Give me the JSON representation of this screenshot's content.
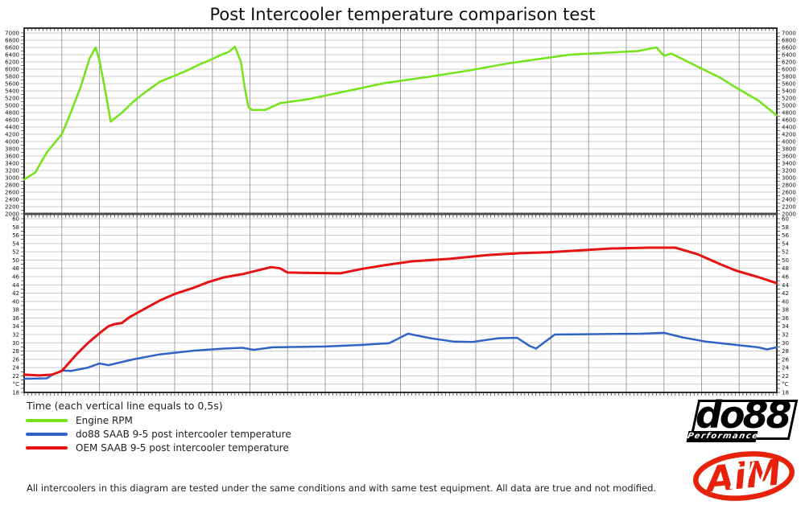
{
  "title": "Post Intercooler temperature comparison test",
  "time_note": "Time (each vertical line equals to 0,5s)",
  "footer": "All intercoolers in this diagram are tested under the same conditions and with same test equipment. All data are true and not modified.",
  "colors": {
    "rpm_green": "#74E318",
    "do88_blue": "#2F63C5",
    "oem_red": "#E51313",
    "grid_light": "#cccccc",
    "grid_vertical": "#a2a2a2",
    "border": "#2e2e2e",
    "divider": "#4d4d4d"
  },
  "legend": [
    {
      "label": "Engine RPM",
      "color": "#74E318"
    },
    {
      "label": "do88 SAAB 9-5 post intercooler temperature",
      "color": "#2F63C5"
    },
    {
      "label": "OEM SAAB 9-5 post intercooler temperature",
      "color": "#E51313"
    }
  ],
  "logos": {
    "do88_text": "do88",
    "do88_sub": "Performance",
    "aim_text": "AiM"
  },
  "chart_data": {
    "type": "line",
    "title": "Post Intercooler temperature comparison test",
    "x_axis": {
      "unit": "s",
      "range": [
        0,
        10
      ],
      "major_gridline_interval_s": 0.5,
      "minor_tick_interval_s": 0.05,
      "note": "each vertical line equals to 0,5s"
    },
    "panels": [
      {
        "name": "engine-rpm",
        "ylim": [
          2000,
          7000
        ],
        "tick_step": 200,
        "y_ticks": [
          7000,
          6800,
          6600,
          6400,
          6200,
          6000,
          5800,
          5600,
          5400,
          5200,
          5000,
          4800,
          4600,
          4400,
          4200,
          4000,
          3800,
          3600,
          3400,
          3200,
          3000,
          2800,
          2600,
          2400,
          2200,
          2000
        ],
        "grid": true,
        "series": [
          {
            "name": "Engine RPM",
            "color": "#74E318",
            "width": 2.5,
            "points": [
              [
                0,
                2950
              ],
              [
                0.15,
                3150
              ],
              [
                0.3,
                3700
              ],
              [
                0.5,
                4200
              ],
              [
                0.6,
                4700
              ],
              [
                0.75,
                5500
              ],
              [
                0.87,
                6300
              ],
              [
                0.95,
                6600
              ],
              [
                1.0,
                6250
              ],
              [
                1.07,
                5500
              ],
              [
                1.15,
                4550
              ],
              [
                1.3,
                4800
              ],
              [
                1.45,
                5100
              ],
              [
                1.6,
                5350
              ],
              [
                1.8,
                5650
              ],
              [
                2.0,
                5820
              ],
              [
                2.15,
                5950
              ],
              [
                2.35,
                6150
              ],
              [
                2.5,
                6280
              ],
              [
                2.62,
                6400
              ],
              [
                2.72,
                6480
              ],
              [
                2.8,
                6620
              ],
              [
                2.88,
                6200
              ],
              [
                2.93,
                5500
              ],
              [
                2.98,
                4950
              ],
              [
                3.03,
                4870
              ],
              [
                3.2,
                4870
              ],
              [
                3.4,
                5060
              ],
              [
                3.75,
                5160
              ],
              [
                4.3,
                5400
              ],
              [
                4.8,
                5620
              ],
              [
                5.35,
                5780
              ],
              [
                5.9,
                5960
              ],
              [
                6.4,
                6150
              ],
              [
                6.8,
                6270
              ],
              [
                7.25,
                6400
              ],
              [
                7.8,
                6460
              ],
              [
                8.15,
                6500
              ],
              [
                8.4,
                6600
              ],
              [
                8.5,
                6370
              ],
              [
                8.6,
                6430
              ],
              [
                8.9,
                6120
              ],
              [
                9.25,
                5760
              ],
              [
                9.45,
                5500
              ],
              [
                9.75,
                5140
              ],
              [
                10,
                4720
              ]
            ]
          }
        ]
      },
      {
        "name": "temperature",
        "unit": "°C",
        "unit_replaces_tick": 20,
        "ylim": [
          18,
          60
        ],
        "tick_step": 2,
        "y_ticks": [
          60,
          58,
          56,
          54,
          52,
          50,
          48,
          46,
          44,
          42,
          40,
          38,
          36,
          34,
          32,
          30,
          28,
          26,
          24,
          22,
          20,
          18
        ],
        "grid": true,
        "series": [
          {
            "name": "do88 SAAB 9-5 post intercooler temperature",
            "color": "#2F63C5",
            "width": 2.5,
            "points": [
              [
                0,
                21.3
              ],
              [
                0.3,
                21.4
              ],
              [
                0.37,
                22.2
              ],
              [
                0.5,
                23.3
              ],
              [
                0.62,
                23.2
              ],
              [
                0.85,
                24.0
              ],
              [
                1.0,
                25.0
              ],
              [
                1.12,
                24.6
              ],
              [
                1.45,
                26.0
              ],
              [
                1.8,
                27.2
              ],
              [
                2.25,
                28.1
              ],
              [
                2.65,
                28.6
              ],
              [
                2.9,
                28.8
              ],
              [
                3.05,
                28.3
              ],
              [
                3.3,
                28.9
              ],
              [
                4.0,
                29.1
              ],
              [
                4.5,
                29.5
              ],
              [
                4.85,
                29.9
              ],
              [
                5.1,
                32.2
              ],
              [
                5.4,
                31.1
              ],
              [
                5.7,
                30.3
              ],
              [
                5.95,
                30.2
              ],
              [
                6.3,
                31.1
              ],
              [
                6.55,
                31.2
              ],
              [
                6.72,
                29.2
              ],
              [
                6.8,
                28.6
              ],
              [
                7.05,
                32.0
              ],
              [
                7.6,
                32.1
              ],
              [
                8.2,
                32.2
              ],
              [
                8.5,
                32.4
              ],
              [
                8.75,
                31.3
              ],
              [
                9.05,
                30.3
              ],
              [
                9.25,
                29.9
              ],
              [
                9.5,
                29.4
              ],
              [
                9.75,
                28.9
              ],
              [
                9.87,
                28.4
              ],
              [
                10,
                28.9
              ]
            ]
          },
          {
            "name": "OEM SAAB 9-5 post intercooler temperature",
            "color": "#E51313",
            "width": 3,
            "points": [
              [
                0,
                22.3
              ],
              [
                0.2,
                22.1
              ],
              [
                0.37,
                22.3
              ],
              [
                0.5,
                23.2
              ],
              [
                0.7,
                27.3
              ],
              [
                0.85,
                30.0
              ],
              [
                1.0,
                32.3
              ],
              [
                1.12,
                34.0
              ],
              [
                1.2,
                34.5
              ],
              [
                1.3,
                34.8
              ],
              [
                1.4,
                36.2
              ],
              [
                1.6,
                38.2
              ],
              [
                1.8,
                40.2
              ],
              [
                2.0,
                41.8
              ],
              [
                2.25,
                43.3
              ],
              [
                2.45,
                44.7
              ],
              [
                2.65,
                45.8
              ],
              [
                2.9,
                46.6
              ],
              [
                3.1,
                47.5
              ],
              [
                3.28,
                48.3
              ],
              [
                3.4,
                48.0
              ],
              [
                3.5,
                47.0
              ],
              [
                3.8,
                46.9
              ],
              [
                4.2,
                46.8
              ],
              [
                4.5,
                47.9
              ],
              [
                4.8,
                48.8
              ],
              [
                5.15,
                49.7
              ],
              [
                5.65,
                50.3
              ],
              [
                6.15,
                51.2
              ],
              [
                6.6,
                51.7
              ],
              [
                6.95,
                51.9
              ],
              [
                7.25,
                52.2
              ],
              [
                7.8,
                52.8
              ],
              [
                8.3,
                53.0
              ],
              [
                8.65,
                53.0
              ],
              [
                8.95,
                51.4
              ],
              [
                9.25,
                49.0
              ],
              [
                9.45,
                47.5
              ],
              [
                9.75,
                45.9
              ],
              [
                10,
                44.4
              ]
            ]
          }
        ]
      }
    ]
  }
}
